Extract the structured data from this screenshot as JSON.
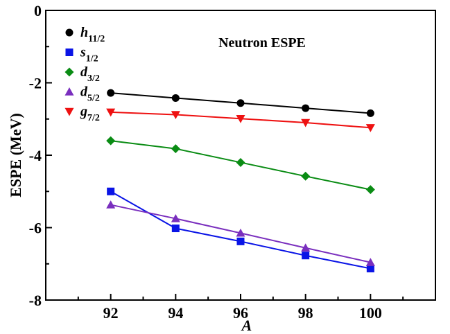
{
  "chart_data": {
    "type": "line",
    "title": "Neutron ESPE",
    "xlabel": "A",
    "ylabel": "ESPE (MeV)",
    "x": [
      92,
      94,
      96,
      98,
      100
    ],
    "xlim": [
      90,
      102
    ],
    "ylim": [
      -8,
      0
    ],
    "x_ticks": [
      "92",
      "94",
      "96",
      "98",
      "100"
    ],
    "y_ticks": [
      "0",
      "-2",
      "-4",
      "-6",
      "-8"
    ],
    "grid": false,
    "legend_position": "top-left",
    "series": [
      {
        "name": "h",
        "sub": "11/2",
        "color": "#000000",
        "marker": "circle",
        "values": [
          -2.28,
          -2.42,
          -2.56,
          -2.7,
          -2.84
        ]
      },
      {
        "name": "s",
        "sub": "1/2",
        "color": "#0a14e6",
        "marker": "square",
        "values": [
          -5.0,
          -6.02,
          -6.38,
          -6.77,
          -7.13
        ]
      },
      {
        "name": "d",
        "sub": "3/2",
        "color": "#0a8c14",
        "marker": "diamond",
        "values": [
          -3.6,
          -3.82,
          -4.2,
          -4.58,
          -4.95
        ]
      },
      {
        "name": "d",
        "sub": "5/2",
        "color": "#7a2fbe",
        "marker": "triangle-up",
        "values": [
          -5.37,
          -5.75,
          -6.15,
          -6.56,
          -6.96
        ]
      },
      {
        "name": "g",
        "sub": "7/2",
        "color": "#ee1111",
        "marker": "triangle-down",
        "values": [
          -2.81,
          -2.88,
          -2.99,
          -3.1,
          -3.24
        ]
      }
    ]
  }
}
